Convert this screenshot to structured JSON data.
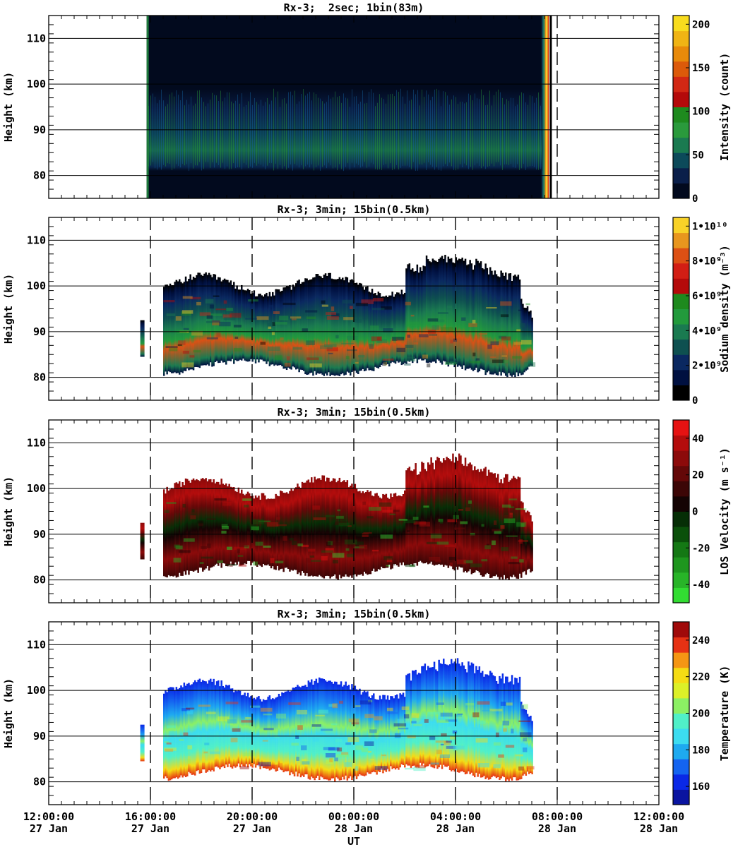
{
  "figure": {
    "x_axis_label": "UT",
    "x_ticks": [
      {
        "time": "12:00:00",
        "date": "27 Jan"
      },
      {
        "time": "16:00:00",
        "date": "27 Jan"
      },
      {
        "time": "20:00:00",
        "date": "27 Jan"
      },
      {
        "time": "00:00:00",
        "date": "28 Jan"
      },
      {
        "time": "04:00:00",
        "date": "28 Jan"
      },
      {
        "time": "08:00:00",
        "date": "28 Jan"
      },
      {
        "time": "12:00:00",
        "date": "28 Jan"
      }
    ],
    "y_axis_label": "Height (km)",
    "y_ticks": [
      "80",
      "90",
      "100",
      "110"
    ]
  },
  "chart_data": [
    {
      "type": "heatmap",
      "title": "Rx-3;  2sec; 1bin(83m)",
      "xlabel": "UT",
      "ylabel": "Height (km)",
      "x_range_hours": [
        0,
        24
      ],
      "ylim": [
        75,
        115
      ],
      "colorbar": {
        "label": "Intensity (count)",
        "range": [
          0,
          210
        ],
        "ticks": [
          "0",
          "50",
          "100",
          "150",
          "200"
        ],
        "tick_values": [
          0,
          50,
          100,
          150,
          200
        ],
        "colors": [
          "#020a1e",
          "#0a1f4a",
          "#0c4a5a",
          "#1a7a50",
          "#2a9a3c",
          "#1e8a1e",
          "#b40a0a",
          "#d22814",
          "#dc5a0a",
          "#e88a0a",
          "#f0b414",
          "#f8dc1e"
        ]
      },
      "data_region": {
        "start_hour": 3.85,
        "end_hour": 19.6,
        "layer_bottom_km": 81,
        "layer_top_km": 99,
        "saturated_end_hour": 19.4
      },
      "dashed_lines_hours": [
        20
      ]
    },
    {
      "type": "heatmap",
      "title": "Rx-3; 3min; 15bin(0.5km)",
      "xlabel": "UT",
      "ylabel": "Height (km)",
      "x_range_hours": [
        0,
        24
      ],
      "ylim": [
        75,
        115
      ],
      "colorbar": {
        "label": "Sodium density (m⁻³)",
        "range": [
          0,
          10500000000.0
        ],
        "ticks": [
          "0",
          "2•10⁹",
          "4•10⁹",
          "6•10⁹",
          "8•10⁹",
          "1•10¹⁰"
        ],
        "tick_values": [
          0,
          2000000000.0,
          4000000000.0,
          6000000000.0,
          8000000000.0,
          10000000000.0
        ],
        "colors": [
          "#000000",
          "#001040",
          "#0a2860",
          "#0e5050",
          "#1a7a50",
          "#229a3c",
          "#1e8a1e",
          "#b40a0a",
          "#d21e14",
          "#dc5014",
          "#e8961e",
          "#f8d228"
        ]
      },
      "data_region": {
        "start_hour": 3.8,
        "end_hour": 19.0,
        "bottom_km": 80,
        "top_km": 105
      },
      "dashed_lines_hours": [
        4,
        8,
        12,
        16,
        20
      ]
    },
    {
      "type": "heatmap",
      "title": "Rx-3; 3min; 15bin(0.5km)",
      "xlabel": "UT",
      "ylabel": "Height (km)",
      "x_range_hours": [
        0,
        24
      ],
      "ylim": [
        75,
        115
      ],
      "colorbar": {
        "label": "LOS Velocity (m s⁻¹)",
        "range": [
          -50,
          50
        ],
        "ticks": [
          "-40",
          "-20",
          "0",
          "20",
          "40"
        ],
        "tick_values": [
          -40,
          -20,
          0,
          20,
          40
        ],
        "colors": [
          "#32dc32",
          "#28b428",
          "#1e961e",
          "#147814",
          "#0a500a",
          "#062e06",
          "#140404",
          "#3c0606",
          "#640808",
          "#8c0a0a",
          "#b40c0c",
          "#e61212"
        ]
      },
      "data_region": {
        "start_hour": 3.8,
        "end_hour": 19.0,
        "bottom_km": 80,
        "top_km": 105
      },
      "dashed_lines_hours": [
        4,
        8,
        12,
        16,
        20
      ]
    },
    {
      "type": "heatmap",
      "title": "Rx-3; 3min; 15bin(0.5km)",
      "xlabel": "UT",
      "ylabel": "Height (km)",
      "x_range_hours": [
        0,
        24
      ],
      "ylim": [
        75,
        115
      ],
      "colorbar": {
        "label": "Temperature (K)",
        "range": [
          150,
          250
        ],
        "ticks": [
          "160",
          "180",
          "200",
          "220",
          "240"
        ],
        "tick_values": [
          160,
          180,
          200,
          220,
          240
        ],
        "colors": [
          "#0a14a0",
          "#0a28e6",
          "#1464f0",
          "#1eaaf0",
          "#3cdcf0",
          "#50f0c8",
          "#8cf064",
          "#dcf028",
          "#f5dc14",
          "#f59614",
          "#e63214",
          "#a00a0a"
        ]
      },
      "data_region": {
        "start_hour": 3.8,
        "end_hour": 19.0,
        "bottom_km": 80,
        "top_km": 105
      },
      "dashed_lines_hours": [
        4,
        8,
        12,
        16,
        20
      ]
    }
  ]
}
